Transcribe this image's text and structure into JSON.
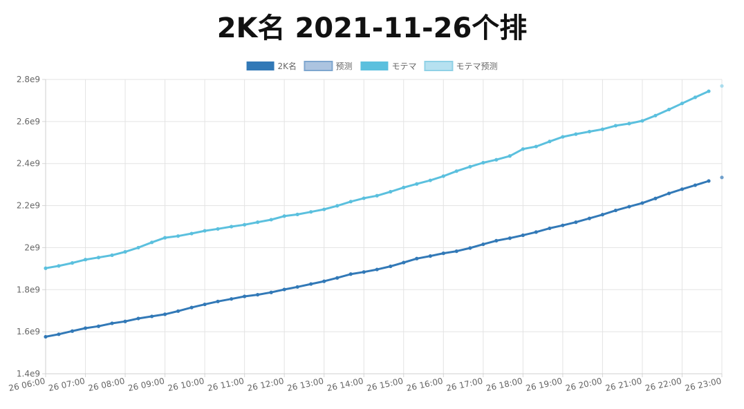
{
  "chart_data": {
    "type": "line",
    "title": "2K名 2021-11-26个排",
    "legend": {
      "placement": "top-center",
      "entries": [
        {
          "name": "2K名",
          "color": "#3279b7",
          "style": "solid"
        },
        {
          "name": "预测",
          "color": "#9dbadb",
          "style": "light"
        },
        {
          "name": "モテマ",
          "color": "#5bc0de",
          "style": "solid"
        },
        {
          "name": "モテマ预测",
          "color": "#a9dced",
          "style": "light"
        }
      ]
    },
    "y_axis": {
      "min": 1400000000,
      "max": 2800000000,
      "ticks": [
        {
          "value": 1400000000,
          "label": "1.4e9"
        },
        {
          "value": 1600000000,
          "label": "1.6e9"
        },
        {
          "value": 1800000000,
          "label": "1.8e9"
        },
        {
          "value": 2000000000,
          "label": "2e9"
        },
        {
          "value": 2200000000,
          "label": "2.2e9"
        },
        {
          "value": 2400000000,
          "label": "2.4e9"
        },
        {
          "value": 2600000000,
          "label": "2.6e9"
        },
        {
          "value": 2800000000,
          "label": "2.8e9"
        }
      ]
    },
    "x_axis": {
      "min": 6,
      "max": 23,
      "ticks": [
        {
          "value": 6,
          "label": "26 06:00"
        },
        {
          "value": 7,
          "label": "26 07:00"
        },
        {
          "value": 8,
          "label": "26 08:00"
        },
        {
          "value": 9,
          "label": "26 09:00"
        },
        {
          "value": 10,
          "label": "26 10:00"
        },
        {
          "value": 11,
          "label": "26 11:00"
        },
        {
          "value": 12,
          "label": "26 12:00"
        },
        {
          "value": 13,
          "label": "26 13:00"
        },
        {
          "value": 14,
          "label": "26 14:00"
        },
        {
          "value": 15,
          "label": "26 15:00"
        },
        {
          "value": 16,
          "label": "26 16:00"
        },
        {
          "value": 17,
          "label": "26 17:00"
        },
        {
          "value": 18,
          "label": "26 18:00"
        },
        {
          "value": 19,
          "label": "26 19:00"
        },
        {
          "value": 20,
          "label": "26 20:00"
        },
        {
          "value": 21,
          "label": "26 21:00"
        },
        {
          "value": 22,
          "label": "26 22:00"
        },
        {
          "value": 23,
          "label": "26 23:00"
        }
      ]
    },
    "grid": true,
    "series": [
      {
        "name": "2K名",
        "color": "#3279b7",
        "x": [
          6,
          6.33,
          6.67,
          7,
          7.33,
          7.67,
          8,
          8.33,
          8.67,
          9,
          9.33,
          9.67,
          10,
          10.33,
          10.67,
          11,
          11.33,
          11.67,
          12,
          12.33,
          12.67,
          13,
          13.33,
          13.67,
          14,
          14.33,
          14.67,
          15,
          15.33,
          15.67,
          16,
          16.33,
          16.67,
          17,
          17.33,
          17.67,
          18,
          18.33,
          18.67,
          19,
          19.33,
          19.67,
          20,
          20.33,
          20.67,
          21,
          21.33,
          21.67,
          22,
          22.33,
          22.67
        ],
        "y": [
          1576000000,
          1588000000,
          1603000000,
          1617000000,
          1626000000,
          1640000000,
          1649000000,
          1663000000,
          1673000000,
          1683000000,
          1698000000,
          1715000000,
          1730000000,
          1744000000,
          1756000000,
          1768000000,
          1776000000,
          1787000000,
          1801000000,
          1813000000,
          1827000000,
          1840000000,
          1856000000,
          1874000000,
          1884000000,
          1896000000,
          1911000000,
          1929000000,
          1948000000,
          1960000000,
          1973000000,
          1983000000,
          1998000000,
          2016000000,
          2033000000,
          2045000000,
          2059000000,
          2074000000,
          2092000000,
          2106000000,
          2121000000,
          2139000000,
          2157000000,
          2177000000,
          2195000000,
          2212000000,
          2234000000,
          2258000000,
          2278000000,
          2297000000,
          2317000000
        ]
      },
      {
        "name": "预测",
        "color": "#6f9fcc",
        "x": [
          23
        ],
        "y": [
          2334000000
        ]
      },
      {
        "name": "モテマ",
        "color": "#5bc0de",
        "x": [
          6,
          6.33,
          6.67,
          7,
          7.33,
          7.67,
          8,
          8.33,
          8.67,
          9,
          9.33,
          9.67,
          10,
          10.33,
          10.67,
          11,
          11.33,
          11.67,
          12,
          12.33,
          12.67,
          13,
          13.33,
          13.67,
          14,
          14.33,
          14.67,
          15,
          15.33,
          15.67,
          16,
          16.33,
          16.67,
          17,
          17.33,
          17.67,
          18,
          18.33,
          18.67,
          19,
          19.33,
          19.67,
          20,
          20.33,
          20.67,
          21,
          21.33,
          21.67,
          22,
          22.33,
          22.67
        ],
        "y": [
          1902000000,
          1913000000,
          1927000000,
          1943000000,
          1953000000,
          1964000000,
          1980000000,
          2000000000,
          2025000000,
          2047000000,
          2055000000,
          2067000000,
          2080000000,
          2089000000,
          2100000000,
          2109000000,
          2121000000,
          2133000000,
          2150000000,
          2158000000,
          2170000000,
          2182000000,
          2199000000,
          2219000000,
          2235000000,
          2247000000,
          2266000000,
          2286000000,
          2303000000,
          2320000000,
          2340000000,
          2364000000,
          2385000000,
          2404000000,
          2418000000,
          2436000000,
          2469000000,
          2481000000,
          2505000000,
          2527000000,
          2540000000,
          2552000000,
          2563000000,
          2580000000,
          2590000000,
          2603000000,
          2628000000,
          2657000000,
          2686000000,
          2715000000,
          2744000000
        ]
      },
      {
        "name": "モテマ预测",
        "color": "#a9dced",
        "x": [
          23
        ],
        "y": [
          2769000000
        ]
      }
    ]
  }
}
